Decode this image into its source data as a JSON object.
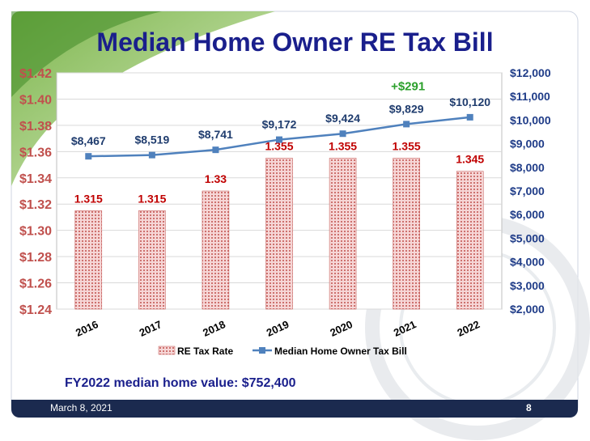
{
  "slide": {
    "title": "Median Home Owner RE Tax Bill",
    "note": "FY2022 median home value: $752,400",
    "footer_date": "March 8, 2021",
    "page_number": "8",
    "colors": {
      "title": "#1a1f8c",
      "footer": "#1b2a4f",
      "left_axis": "#c0504d",
      "right_axis": "#1f3c88"
    }
  },
  "chart_data": {
    "type": "bar",
    "categories": [
      "2016",
      "2017",
      "2018",
      "2019",
      "2020",
      "2021",
      "2022"
    ],
    "series": [
      {
        "name": "RE Tax Rate",
        "type": "bar",
        "axis": "left",
        "values": [
          1.315,
          1.315,
          1.33,
          1.355,
          1.355,
          1.355,
          1.345
        ],
        "labels": [
          "1.315",
          "1.315",
          "1.33",
          "1.355",
          "1.355",
          "1.355",
          "1.345"
        ],
        "color": "#c0504d"
      },
      {
        "name": "Median Home Owner Tax Bill",
        "type": "line",
        "axis": "right",
        "values": [
          8467,
          8519,
          8741,
          9172,
          9424,
          9829,
          10120
        ],
        "labels": [
          "$8,467",
          "$8,519",
          "$8,741",
          "$9,172",
          "$9,424",
          "$9,829",
          "$10,120"
        ],
        "color": "#4f81bd"
      }
    ],
    "left_axis": {
      "min": 1.24,
      "max": 1.42,
      "ticks": [
        "$1.42",
        "$1.40",
        "$1.38",
        "$1.36",
        "$1.34",
        "$1.32",
        "$1.30",
        "$1.28",
        "$1.26",
        "$1.24"
      ],
      "tick_values": [
        1.42,
        1.4,
        1.38,
        1.36,
        1.34,
        1.32,
        1.3,
        1.28,
        1.26,
        1.24
      ]
    },
    "right_axis": {
      "min": 2000,
      "max": 12000,
      "ticks": [
        "$12,000",
        "$11,000",
        "$10,000",
        "$9,000",
        "$8,000",
        "$7,000",
        "$6,000",
        "$5,000",
        "$4,000",
        "$3,000",
        "$2,000"
      ],
      "tick_values": [
        12000,
        11000,
        10000,
        9000,
        8000,
        7000,
        6000,
        5000,
        4000,
        3000,
        2000
      ]
    },
    "annotation": {
      "text": "+$291",
      "color": "#2ca02c"
    },
    "legend_position": "bottom",
    "grid": true
  }
}
